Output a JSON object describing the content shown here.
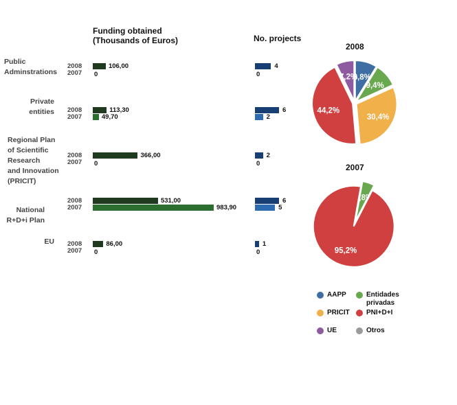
{
  "chart_data": [
    {
      "type": "bar",
      "orientation": "horizontal",
      "title": "Funding obtained\n(Thousands of Euros)",
      "categories": [
        "Public\nAdminstrations",
        "Private\nentities",
        "Regional Plan\nof Scientific\nResearch\nand Innovation\n(PRICIT)",
        "National\nR+D+i Plan",
        "EU"
      ],
      "series": [
        {
          "name": "2008",
          "values": [
            106.0,
            113.3,
            366.0,
            531.0,
            86.0
          ],
          "labels": [
            "106,00",
            "113,30",
            "366,00",
            "531,00",
            "86,00"
          ]
        },
        {
          "name": "2007",
          "values": [
            0,
            49.7,
            0,
            983.9,
            0
          ],
          "labels": [
            "0",
            "49,70",
            "0",
            "983,90",
            "0"
          ]
        }
      ]
    },
    {
      "type": "bar",
      "orientation": "horizontal",
      "title": "No. projects",
      "categories": [
        "Public\nAdminstrations",
        "Private\nentities",
        "Regional Plan\nof Scientific\nResearch\nand Innovation\n(PRICIT)",
        "National\nR+D+i Plan",
        "EU"
      ],
      "series": [
        {
          "name": "2008",
          "values": [
            4,
            6,
            2,
            6,
            1
          ],
          "labels": [
            "4",
            "6",
            "2",
            "6",
            "1"
          ]
        },
        {
          "name": "2007",
          "values": [
            0,
            2,
            0,
            5,
            0
          ],
          "labels": [
            "0",
            "2",
            "0",
            "5",
            "0"
          ]
        }
      ]
    },
    {
      "type": "pie",
      "title": "2008",
      "slices": [
        {
          "name": "AAPP",
          "value": 8.8,
          "label": "8,8%"
        },
        {
          "name": "Entidades privadas",
          "value": 9.4,
          "label": "9,4%"
        },
        {
          "name": "PRICIT",
          "value": 30.4,
          "label": "30,4%"
        },
        {
          "name": "PNI+D+I",
          "value": 44.2,
          "label": "44,2%"
        },
        {
          "name": "UE",
          "value": 7.2,
          "label": "7,2%"
        }
      ]
    },
    {
      "type": "pie",
      "title": "2007",
      "slices": [
        {
          "name": "Entidades privadas",
          "value": 4.8,
          "label": "4,8%"
        },
        {
          "name": "PNI+D+I",
          "value": 95.2,
          "label": "95,2%"
        }
      ]
    }
  ],
  "year_labels": [
    "2008",
    "2007"
  ],
  "legend": [
    {
      "label": "AAPP",
      "color": "#3f6ea3"
    },
    {
      "label": "Entidades\nprivadas",
      "color": "#6aa84f"
    },
    {
      "label": "PRICIT",
      "color": "#f0b04a"
    },
    {
      "label": "PNI+D+I",
      "color": "#d04040"
    },
    {
      "label": "UE",
      "color": "#8e5aa0"
    },
    {
      "label": "Otros",
      "color": "#9b9b9b"
    }
  ],
  "colors": {
    "funding_2008": "#1f3a1f",
    "funding_2007": "#2b6e30",
    "projects_2008": "#173f74",
    "projects_2007": "#2d6bb0"
  }
}
